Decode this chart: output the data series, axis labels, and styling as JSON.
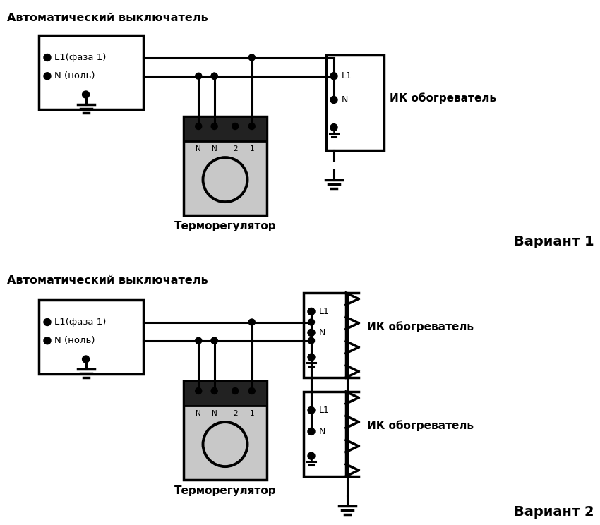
{
  "title": "Автоматический выключатель",
  "thermostat_label": "Терморегулятор",
  "heater_label": "ИК обогреватель",
  "label_L1faza": "L1(фаза 1)",
  "label_Nnol": "N (ноль)",
  "variant1": "Вариант 1",
  "variant2": "Вариант 2",
  "bg": "#ffffff",
  "fg": "#000000",
  "gray": "#c8c8c8",
  "dark": "#222222"
}
